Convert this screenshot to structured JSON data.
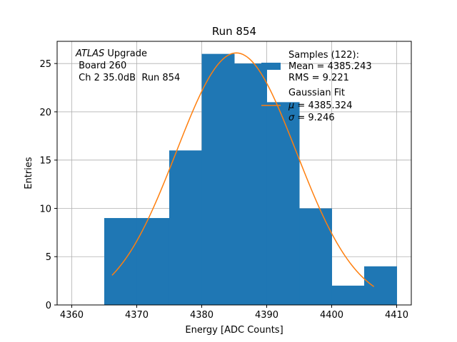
{
  "chart_data": {
    "type": "bar",
    "title": "Run 854",
    "xlabel": "Energy [ADC Counts]",
    "ylabel": "Entries",
    "xlim": [
      4357.75,
      4412.25
    ],
    "ylim": [
      0,
      27.3
    ],
    "x_ticks": [
      4360,
      4370,
      4380,
      4390,
      4400,
      4410
    ],
    "y_ticks": [
      0,
      5,
      10,
      15,
      20,
      25
    ],
    "grid": true,
    "bar_color": "#1f77b4",
    "fit_color": "#ff7f0e",
    "bins": [
      {
        "x0": 4365,
        "x1": 4370,
        "count": 9
      },
      {
        "x0": 4370,
        "x1": 4375,
        "count": 9
      },
      {
        "x0": 4375,
        "x1": 4380,
        "count": 16
      },
      {
        "x0": 4380,
        "x1": 4385,
        "count": 26
      },
      {
        "x0": 4385,
        "x1": 4390,
        "count": 25
      },
      {
        "x0": 4390,
        "x1": 4395,
        "count": 21
      },
      {
        "x0": 4395,
        "x1": 4400,
        "count": 10
      },
      {
        "x0": 4400,
        "x1": 4405,
        "count": 2
      },
      {
        "x0": 4405,
        "x1": 4410,
        "count": 4
      }
    ],
    "gaussian_fit": {
      "mu": 4385.324,
      "sigma": 9.246,
      "amplitude": 26.1,
      "x_range": [
        4366.2,
        4406.5
      ]
    },
    "legend": {
      "placement": "top-right",
      "samples": {
        "label": "Samples (122):",
        "mean": "Mean = 4385.243",
        "rms": "RMS = 9.221"
      },
      "fit": {
        "label": "Gaussian Fit",
        "mu_symbol": "μ",
        "mu_value": " = 4385.324",
        "sigma_symbol": "σ",
        "sigma_value": " = 9.246"
      }
    },
    "annotation": {
      "experiment": "ATLAS",
      "experiment_suffix": " Upgrade",
      "board": " Board 260",
      "channel": " Ch 2 35.0dB  Run 854"
    }
  }
}
